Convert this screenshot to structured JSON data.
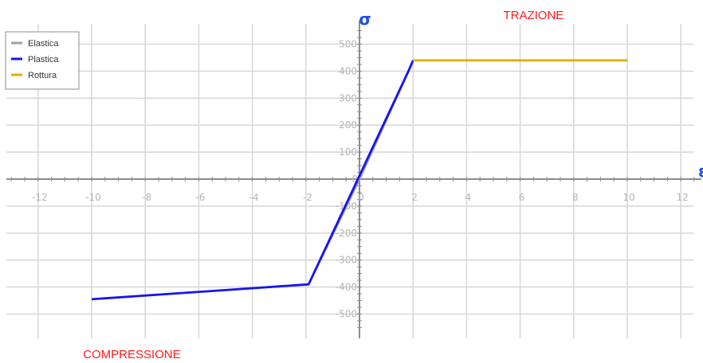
{
  "chart_data": {
    "type": "line",
    "xlabel": "ε",
    "ylabel": "σ",
    "xlim": [
      -13,
      12.5
    ],
    "ylim": [
      -580,
      590
    ],
    "x_ticks": [
      -12,
      -10,
      -8,
      -6,
      -4,
      -2,
      0,
      2,
      4,
      6,
      8,
      10,
      12
    ],
    "y_ticks": [
      -500,
      -400,
      -300,
      -200,
      -100,
      0,
      100,
      200,
      300,
      400,
      500
    ],
    "grid": true,
    "legend_position": "top-left",
    "series": [
      {
        "name": "Elastica",
        "color": "#a0a0a0",
        "points": [
          [
            -1.9,
            -390
          ],
          [
            0,
            0
          ],
          [
            1.85,
            405
          ]
        ]
      },
      {
        "name": "Plastica",
        "color": "#1515ee",
        "points": [
          [
            -10,
            -445
          ],
          [
            -1.9,
            -390
          ],
          [
            1.85,
            405
          ],
          [
            2,
            440
          ]
        ]
      },
      {
        "name": "Rottura",
        "color": "#e0b000",
        "points": [
          [
            2,
            440
          ],
          [
            10,
            440
          ]
        ]
      }
    ],
    "annotations": [
      {
        "text": "TRAZIONE",
        "x": 6.5,
        "y": 590
      },
      {
        "text": "COMPRESSIONE",
        "x": -8.5,
        "y": -640
      }
    ]
  }
}
